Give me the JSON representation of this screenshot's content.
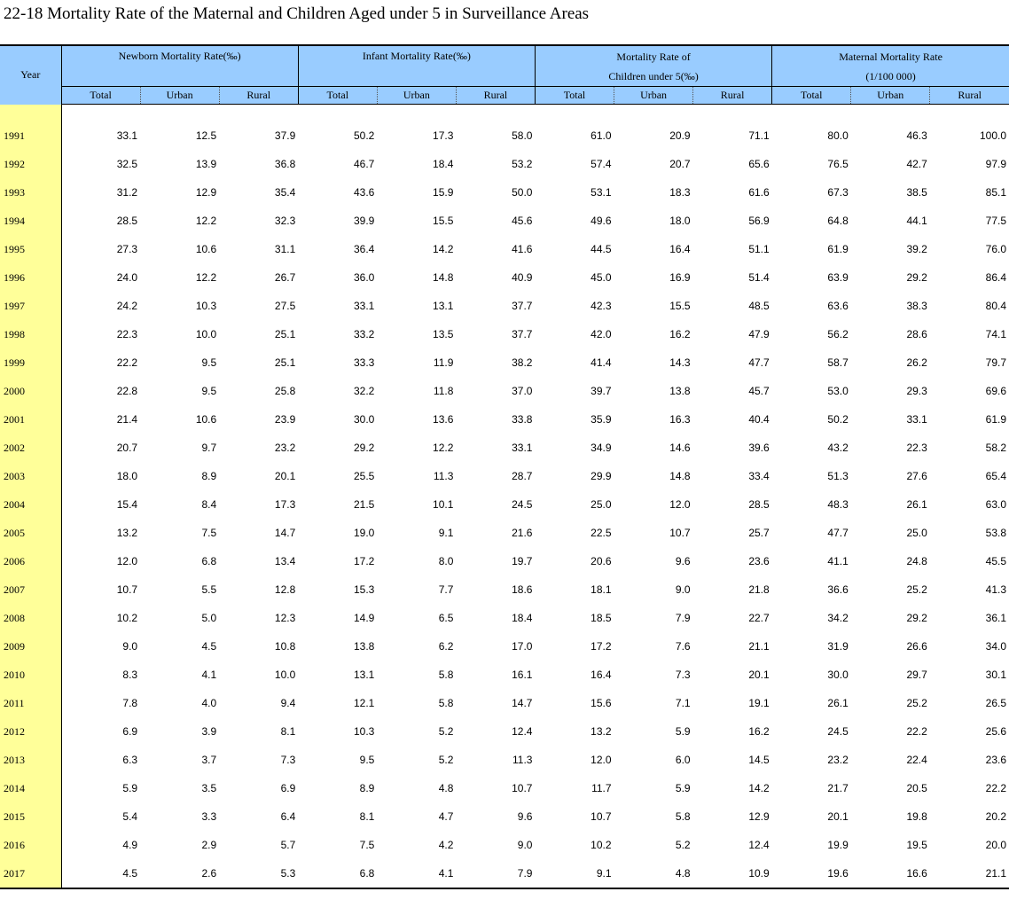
{
  "title": "22-18  Mortality Rate of the Maternal and Children Aged under 5 in Surveillance Areas",
  "header": {
    "year": "Year",
    "groups": [
      {
        "line1": "Newborn Mortality Rate(‰)",
        "line2": ""
      },
      {
        "line1": "Infant Mortality Rate(‰)",
        "line2": ""
      },
      {
        "line1": "Mortality Rate of",
        "line2": "Children under 5(‰)"
      },
      {
        "line1": "Maternal Mortality Rate",
        "line2": "(1/100 000)"
      }
    ],
    "sub": [
      "Total",
      "Urban",
      "Rural"
    ]
  },
  "rows": [
    {
      "year": "1991",
      "v": [
        "33.1",
        "12.5",
        "37.9",
        "50.2",
        "17.3",
        "58.0",
        "61.0",
        "20.9",
        "71.1",
        "80.0",
        "46.3",
        "100.0"
      ]
    },
    {
      "year": "1992",
      "v": [
        "32.5",
        "13.9",
        "36.8",
        "46.7",
        "18.4",
        "53.2",
        "57.4",
        "20.7",
        "65.6",
        "76.5",
        "42.7",
        "97.9"
      ]
    },
    {
      "year": "1993",
      "v": [
        "31.2",
        "12.9",
        "35.4",
        "43.6",
        "15.9",
        "50.0",
        "53.1",
        "18.3",
        "61.6",
        "67.3",
        "38.5",
        "85.1"
      ]
    },
    {
      "year": "1994",
      "v": [
        "28.5",
        "12.2",
        "32.3",
        "39.9",
        "15.5",
        "45.6",
        "49.6",
        "18.0",
        "56.9",
        "64.8",
        "44.1",
        "77.5"
      ]
    },
    {
      "year": "1995",
      "v": [
        "27.3",
        "10.6",
        "31.1",
        "36.4",
        "14.2",
        "41.6",
        "44.5",
        "16.4",
        "51.1",
        "61.9",
        "39.2",
        "76.0"
      ]
    },
    {
      "year": "1996",
      "v": [
        "24.0",
        "12.2",
        "26.7",
        "36.0",
        "14.8",
        "40.9",
        "45.0",
        "16.9",
        "51.4",
        "63.9",
        "29.2",
        "86.4"
      ]
    },
    {
      "year": "1997",
      "v": [
        "24.2",
        "10.3",
        "27.5",
        "33.1",
        "13.1",
        "37.7",
        "42.3",
        "15.5",
        "48.5",
        "63.6",
        "38.3",
        "80.4"
      ]
    },
    {
      "year": "1998",
      "v": [
        "22.3",
        "10.0",
        "25.1",
        "33.2",
        "13.5",
        "37.7",
        "42.0",
        "16.2",
        "47.9",
        "56.2",
        "28.6",
        "74.1"
      ]
    },
    {
      "year": "1999",
      "v": [
        "22.2",
        "9.5",
        "25.1",
        "33.3",
        "11.9",
        "38.2",
        "41.4",
        "14.3",
        "47.7",
        "58.7",
        "26.2",
        "79.7"
      ]
    },
    {
      "year": "2000",
      "v": [
        "22.8",
        "9.5",
        "25.8",
        "32.2",
        "11.8",
        "37.0",
        "39.7",
        "13.8",
        "45.7",
        "53.0",
        "29.3",
        "69.6"
      ]
    },
    {
      "year": "2001",
      "v": [
        "21.4",
        "10.6",
        "23.9",
        "30.0",
        "13.6",
        "33.8",
        "35.9",
        "16.3",
        "40.4",
        "50.2",
        "33.1",
        "61.9"
      ]
    },
    {
      "year": "2002",
      "v": [
        "20.7",
        "9.7",
        "23.2",
        "29.2",
        "12.2",
        "33.1",
        "34.9",
        "14.6",
        "39.6",
        "43.2",
        "22.3",
        "58.2"
      ]
    },
    {
      "year": "2003",
      "v": [
        "18.0",
        "8.9",
        "20.1",
        "25.5",
        "11.3",
        "28.7",
        "29.9",
        "14.8",
        "33.4",
        "51.3",
        "27.6",
        "65.4"
      ]
    },
    {
      "year": "2004",
      "v": [
        "15.4",
        "8.4",
        "17.3",
        "21.5",
        "10.1",
        "24.5",
        "25.0",
        "12.0",
        "28.5",
        "48.3",
        "26.1",
        "63.0"
      ]
    },
    {
      "year": "2005",
      "v": [
        "13.2",
        "7.5",
        "14.7",
        "19.0",
        "9.1",
        "21.6",
        "22.5",
        "10.7",
        "25.7",
        "47.7",
        "25.0",
        "53.8"
      ]
    },
    {
      "year": "2006",
      "v": [
        "12.0",
        "6.8",
        "13.4",
        "17.2",
        "8.0",
        "19.7",
        "20.6",
        "9.6",
        "23.6",
        "41.1",
        "24.8",
        "45.5"
      ]
    },
    {
      "year": "2007",
      "v": [
        "10.7",
        "5.5",
        "12.8",
        "15.3",
        "7.7",
        "18.6",
        "18.1",
        "9.0",
        "21.8",
        "36.6",
        "25.2",
        "41.3"
      ]
    },
    {
      "year": "2008",
      "v": [
        "10.2",
        "5.0",
        "12.3",
        "14.9",
        "6.5",
        "18.4",
        "18.5",
        "7.9",
        "22.7",
        "34.2",
        "29.2",
        "36.1"
      ]
    },
    {
      "year": "2009",
      "v": [
        "9.0",
        "4.5",
        "10.8",
        "13.8",
        "6.2",
        "17.0",
        "17.2",
        "7.6",
        "21.1",
        "31.9",
        "26.6",
        "34.0"
      ]
    },
    {
      "year": "2010",
      "v": [
        "8.3",
        "4.1",
        "10.0",
        "13.1",
        "5.8",
        "16.1",
        "16.4",
        "7.3",
        "20.1",
        "30.0",
        "29.7",
        "30.1"
      ]
    },
    {
      "year": "2011",
      "v": [
        "7.8",
        "4.0",
        "9.4",
        "12.1",
        "5.8",
        "14.7",
        "15.6",
        "7.1",
        "19.1",
        "26.1",
        "25.2",
        "26.5"
      ]
    },
    {
      "year": "2012",
      "v": [
        "6.9",
        "3.9",
        "8.1",
        "10.3",
        "5.2",
        "12.4",
        "13.2",
        "5.9",
        "16.2",
        "24.5",
        "22.2",
        "25.6"
      ]
    },
    {
      "year": "2013",
      "v": [
        "6.3",
        "3.7",
        "7.3",
        "9.5",
        "5.2",
        "11.3",
        "12.0",
        "6.0",
        "14.5",
        "23.2",
        "22.4",
        "23.6"
      ]
    },
    {
      "year": "2014",
      "v": [
        "5.9",
        "3.5",
        "6.9",
        "8.9",
        "4.8",
        "10.7",
        "11.7",
        "5.9",
        "14.2",
        "21.7",
        "20.5",
        "22.2"
      ]
    },
    {
      "year": "2015",
      "v": [
        "5.4",
        "3.3",
        "6.4",
        "8.1",
        "4.7",
        "9.6",
        "10.7",
        "5.8",
        "12.9",
        "20.1",
        "19.8",
        "20.2"
      ]
    },
    {
      "year": "2016",
      "v": [
        "4.9",
        "2.9",
        "5.7",
        "7.5",
        "4.2",
        "9.0",
        "10.2",
        "5.2",
        "12.4",
        "19.9",
        "19.5",
        "20.0"
      ]
    },
    {
      "year": "2017",
      "v": [
        "4.5",
        "2.6",
        "5.3",
        "6.8",
        "4.1",
        "7.9",
        "9.1",
        "4.8",
        "10.9",
        "19.6",
        "16.6",
        "21.1"
      ]
    }
  ]
}
